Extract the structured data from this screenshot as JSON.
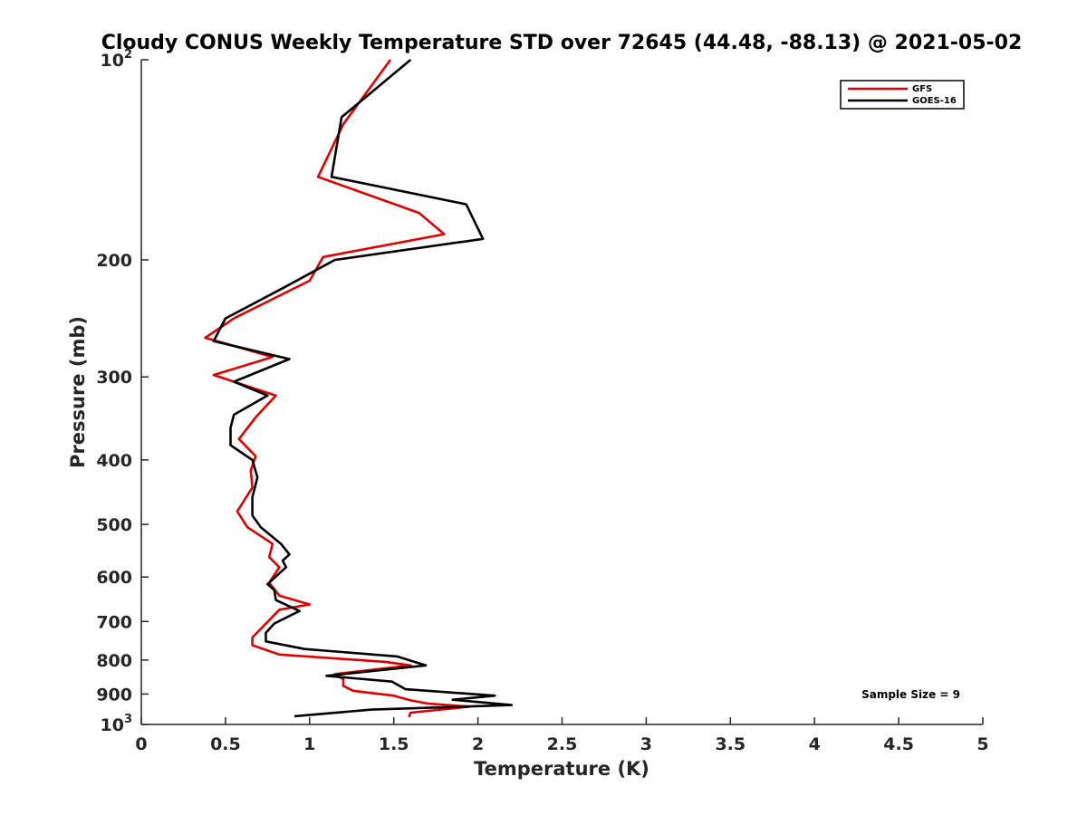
{
  "chart_data": {
    "type": "line",
    "title": "Cloudy CONUS Weekly Temperature STD over 72645 (44.48, -88.13) @ 2021-05-02",
    "xlabel": "Temperature (K)",
    "ylabel": "Pressure (mb)",
    "xlim": [
      0,
      5
    ],
    "ylim": [
      100,
      1000
    ],
    "yscale": "log",
    "yreversed": true,
    "grid": false,
    "legend_position": "top-right",
    "x_ticks": [
      {
        "value": 0,
        "label": "0"
      },
      {
        "value": 0.5,
        "label": "0.5"
      },
      {
        "value": 1,
        "label": "1"
      },
      {
        "value": 1.5,
        "label": "1.5"
      },
      {
        "value": 2,
        "label": "2"
      },
      {
        "value": 2.5,
        "label": "2.5"
      },
      {
        "value": 3,
        "label": "3"
      },
      {
        "value": 3.5,
        "label": "3.5"
      },
      {
        "value": 4,
        "label": "4"
      },
      {
        "value": 4.5,
        "label": "4.5"
      },
      {
        "value": 5,
        "label": "5"
      }
    ],
    "y_ticks": [
      {
        "value": 100,
        "base": "10",
        "exp": "2"
      },
      {
        "value": 200,
        "label": "200"
      },
      {
        "value": 300,
        "label": "300"
      },
      {
        "value": 400,
        "label": "400"
      },
      {
        "value": 500,
        "label": "500"
      },
      {
        "value": 600,
        "label": "600"
      },
      {
        "value": 700,
        "label": "700"
      },
      {
        "value": 800,
        "label": "800"
      },
      {
        "value": 900,
        "label": "900"
      },
      {
        "value": 1000,
        "base": "10",
        "exp": "3"
      }
    ],
    "series": [
      {
        "name": "GFS",
        "color": "#e00000",
        "points": [
          [
            1.48,
            100
          ],
          [
            1.2,
            125
          ],
          [
            1.05,
            150
          ],
          [
            1.65,
            170
          ],
          [
            1.8,
            183
          ],
          [
            1.08,
            198
          ],
          [
            1.0,
            215
          ],
          [
            0.55,
            245
          ],
          [
            0.38,
            262
          ],
          [
            0.78,
            280
          ],
          [
            0.43,
            298
          ],
          [
            0.8,
            320
          ],
          [
            0.68,
            345
          ],
          [
            0.58,
            372
          ],
          [
            0.68,
            395
          ],
          [
            0.65,
            415
          ],
          [
            0.66,
            440
          ],
          [
            0.57,
            478
          ],
          [
            0.63,
            505
          ],
          [
            0.78,
            535
          ],
          [
            0.76,
            560
          ],
          [
            0.82,
            580
          ],
          [
            0.76,
            612
          ],
          [
            0.82,
            640
          ],
          [
            1.0,
            660
          ],
          [
            0.82,
            672
          ],
          [
            0.66,
            740
          ],
          [
            0.66,
            760
          ],
          [
            0.82,
            785
          ],
          [
            1.45,
            805
          ],
          [
            1.6,
            815
          ],
          [
            1.15,
            840
          ],
          [
            1.2,
            855
          ],
          [
            1.2,
            875
          ],
          [
            1.26,
            890
          ],
          [
            1.5,
            905
          ],
          [
            1.6,
            920
          ],
          [
            1.7,
            930
          ],
          [
            1.95,
            940
          ],
          [
            1.6,
            960
          ],
          [
            1.59,
            975
          ]
        ]
      },
      {
        "name": "GOES-16",
        "color": "#000000",
        "points": [
          [
            1.6,
            100
          ],
          [
            1.19,
            122
          ],
          [
            1.13,
            150
          ],
          [
            1.93,
            165
          ],
          [
            2.03,
            186
          ],
          [
            1.15,
            200
          ],
          [
            0.85,
            220
          ],
          [
            0.5,
            245
          ],
          [
            0.43,
            265
          ],
          [
            0.88,
            282
          ],
          [
            0.55,
            305
          ],
          [
            0.75,
            320
          ],
          [
            0.55,
            342
          ],
          [
            0.53,
            358
          ],
          [
            0.53,
            380
          ],
          [
            0.66,
            400
          ],
          [
            0.69,
            425
          ],
          [
            0.66,
            455
          ],
          [
            0.66,
            485
          ],
          [
            0.71,
            505
          ],
          [
            0.83,
            535
          ],
          [
            0.88,
            555
          ],
          [
            0.84,
            567
          ],
          [
            0.86,
            580
          ],
          [
            0.75,
            615
          ],
          [
            0.79,
            628
          ],
          [
            0.8,
            650
          ],
          [
            0.94,
            675
          ],
          [
            0.79,
            705
          ],
          [
            0.74,
            728
          ],
          [
            0.74,
            750
          ],
          [
            0.97,
            770
          ],
          [
            1.52,
            790
          ],
          [
            1.69,
            815
          ],
          [
            1.1,
            845
          ],
          [
            1.49,
            862
          ],
          [
            1.57,
            885
          ],
          [
            2.1,
            905
          ],
          [
            1.85,
            918
          ],
          [
            2.2,
            935
          ],
          [
            1.37,
            950
          ],
          [
            0.91,
            972
          ]
        ]
      }
    ],
    "annotations": [
      {
        "text": "Sample Size = 9",
        "position": "bottom-right"
      }
    ]
  }
}
